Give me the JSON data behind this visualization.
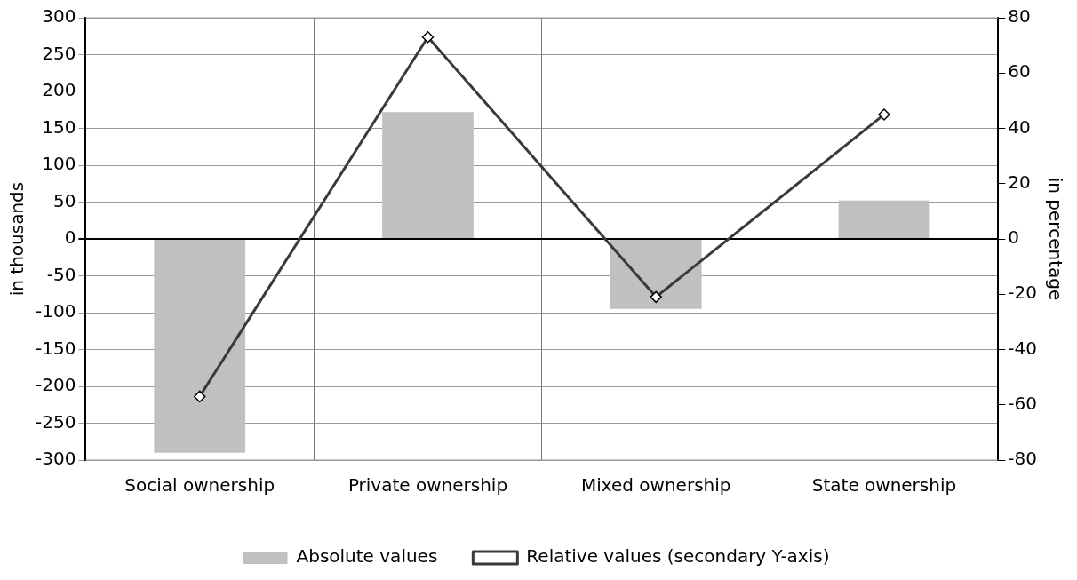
{
  "chart_data": {
    "type": "bar",
    "categories": [
      "Social ownership",
      "Private ownership",
      "Mixed ownership",
      "State ownership"
    ],
    "series": [
      {
        "name": "Absolute values",
        "color": "#c0c0c0",
        "values": [
          -290,
          172,
          -95,
          52
        ]
      },
      {
        "name": "Relative values (secondary Y-axis)",
        "type": "line",
        "axis": "y2",
        "color": "#3a3a3a",
        "marker": "diamond",
        "values": [
          -57,
          73,
          -21,
          45
        ]
      }
    ],
    "ylabel": "in thousands",
    "y2label": "in percentage",
    "ylim": [
      -300,
      300
    ],
    "yticks": [
      -300,
      -250,
      -200,
      -150,
      -100,
      -50,
      0,
      50,
      100,
      150,
      200,
      250,
      300
    ],
    "y2lim": [
      -80,
      80
    ],
    "y2ticks": [
      -80,
      -60,
      -40,
      -20,
      0,
      20,
      40,
      60,
      80
    ],
    "grid": true,
    "legend": "bottom"
  }
}
